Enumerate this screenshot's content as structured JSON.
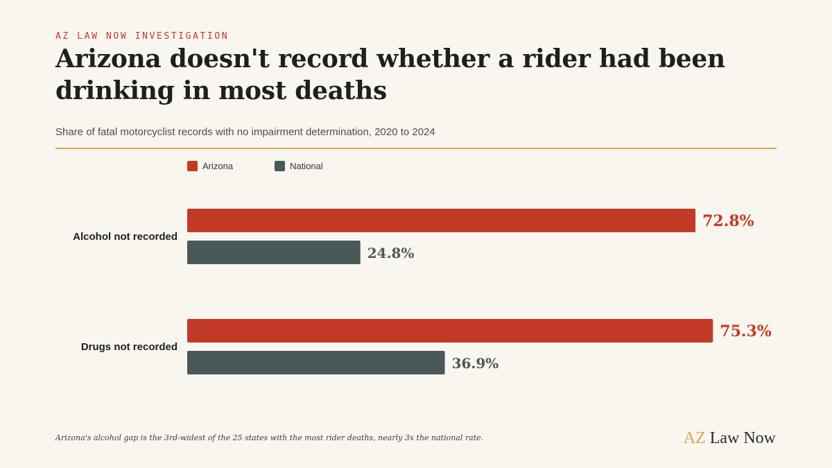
{
  "kicker": "AZ LAW NOW INVESTIGATION",
  "title": "Arizona doesn't record whether a rider had been drinking in most deaths",
  "subtitle": "Share of fatal motorcyclist records with no impairment determination, 2020 to 2024",
  "footnote": "Arizona's alcohol gap is the 3rd-widest of the 25 states with the most rider deaths, nearly 3x the national rate.",
  "brand": {
    "prefix": "AZ",
    "suffix": "Law Now"
  },
  "colors": {
    "arizona": "#c23a25",
    "national": "#4a5858",
    "rule": "#d9a54c",
    "background": "#f9f5ef"
  },
  "chart_data": {
    "type": "bar",
    "orientation": "horizontal",
    "categories": [
      "Alcohol not recorded",
      "Drugs not recorded"
    ],
    "series": [
      {
        "name": "Arizona",
        "values": [
          72.8,
          75.3
        ],
        "labels": [
          "72.8%",
          "75.3%"
        ]
      },
      {
        "name": "National",
        "values": [
          24.8,
          36.9
        ],
        "labels": [
          "24.8%",
          "36.9%"
        ]
      }
    ],
    "xlim": [
      0,
      100
    ],
    "grid": false,
    "legend": "top-left"
  }
}
